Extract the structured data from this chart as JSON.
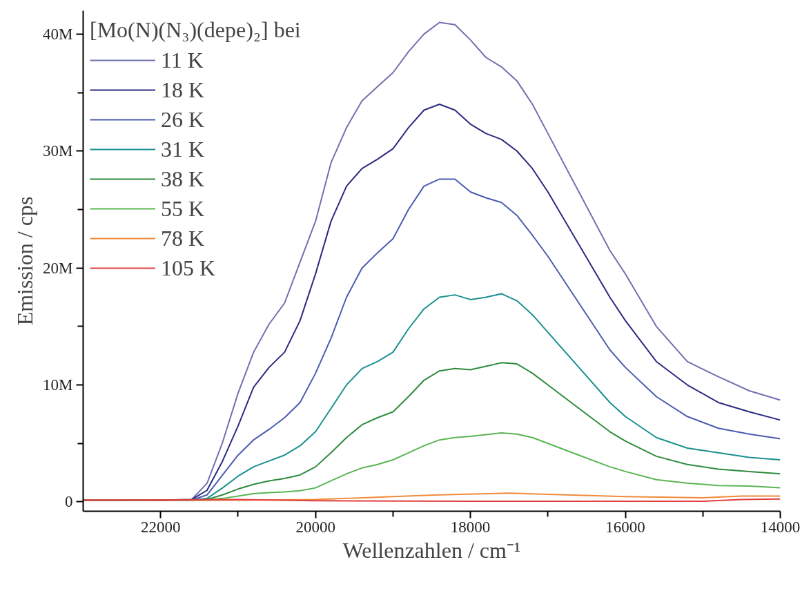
{
  "chart_data": {
    "type": "line",
    "xlabel": "Wellenzahlen / cm⁻¹",
    "ylabel": "Emission / cps",
    "legend_title": "[Mo(N)(N₃)(depe)₂] bei",
    "x": [
      23000,
      22000,
      21600,
      21400,
      21200,
      21000,
      20800,
      20600,
      20400,
      20200,
      20000,
      19800,
      19600,
      19400,
      19200,
      19000,
      18800,
      18600,
      18400,
      18200,
      18000,
      17800,
      17600,
      17400,
      17200,
      17000,
      16600,
      16200,
      16000,
      15600,
      15200,
      14800,
      14400,
      14000
    ],
    "xlim": [
      23000,
      14000
    ],
    "ylim": [
      -800000.0,
      42000000.0
    ],
    "xticks": [
      22000,
      {
        "value": 21000,
        "label": null
      },
      20000,
      {
        "value": 19000,
        "label": null
      },
      18000,
      {
        "value": 17000,
        "label": null
      },
      16000,
      {
        "value": 15000,
        "label": null
      },
      14000
    ],
    "yticks": [
      {
        "value": 0,
        "label": "0"
      },
      {
        "value": 5000000.0,
        "label": null
      },
      {
        "value": 10000000.0,
        "label": "10M"
      },
      {
        "value": 15000000.0,
        "label": null
      },
      {
        "value": 20000000.0,
        "label": "20M"
      },
      {
        "value": 25000000.0,
        "label": null
      },
      {
        "value": 30000000.0,
        "label": "30M"
      },
      {
        "value": 35000000.0,
        "label": null
      },
      {
        "value": 40000000.0,
        "label": "40M"
      }
    ],
    "grid": false,
    "legend": "top left",
    "marker": "none",
    "line_style": "solid",
    "series": [
      {
        "name": "11 K",
        "color": "#7070b0",
        "values": [
          150000.0,
          150000.0,
          200000.0,
          1600000.0,
          5100000.0,
          9300000.0,
          12800000.0,
          15200000.0,
          17000000.0,
          20500000.0,
          24000000.0,
          29000000.0,
          32000000.0,
          34300000.0,
          35500000.0,
          36700000.0,
          38500000.0,
          40000000.0,
          41000000.0,
          40800000.0,
          39500000.0,
          38000000.0,
          37200000.0,
          36000000.0,
          34000000.0,
          31500000.0,
          26500000.0,
          21500000.0,
          19500000.0,
          15000000.0,
          12000000.0,
          10700000.0,
          9500000.0,
          8700000.0
        ]
      },
      {
        "name": "18 K",
        "color": "#2a2a80",
        "values": [
          150000.0,
          150000.0,
          200000.0,
          1000000.0,
          3500000.0,
          6500000.0,
          9800000.0,
          11500000.0,
          12800000.0,
          15500000.0,
          19500000.0,
          24000000.0,
          27000000.0,
          28500000.0,
          29300000.0,
          30200000.0,
          32000000.0,
          33500000.0,
          34000000.0,
          33500000.0,
          32300000.0,
          31500000.0,
          31000000.0,
          30000000.0,
          28500000.0,
          26500000.0,
          22000000.0,
          17500000.0,
          15500000.0,
          12000000.0,
          10000000.0,
          8500000.0,
          7700000.0,
          7000000.0
        ]
      },
      {
        "name": "26 K",
        "color": "#4a5cb0",
        "values": [
          150000.0,
          150000.0,
          150000.0,
          600000.0,
          2300000.0,
          4000000.0,
          5300000.0,
          6200000.0,
          7200000.0,
          8500000.0,
          11000000.0,
          14000000.0,
          17500000.0,
          20000000.0,
          21300000.0,
          22500000.0,
          25000000.0,
          27000000.0,
          27600000.0,
          27600000.0,
          26500000.0,
          26000000.0,
          25600000.0,
          24500000.0,
          22800000.0,
          21000000.0,
          17000000.0,
          13000000.0,
          11500000.0,
          9000000.0,
          7300000.0,
          6300000.0,
          5800000.0,
          5400000.0
        ]
      },
      {
        "name": "31 K",
        "color": "#1a9090",
        "values": [
          150000.0,
          150000.0,
          150000.0,
          300000.0,
          1200000.0,
          2200000.0,
          3000000.0,
          3500000.0,
          4000000.0,
          4800000.0,
          6000000.0,
          8000000.0,
          10000000.0,
          11400000.0,
          12000000.0,
          12800000.0,
          14800000.0,
          16500000.0,
          17500000.0,
          17700000.0,
          17300000.0,
          17500000.0,
          17800000.0,
          17200000.0,
          16000000.0,
          14500000.0,
          11500000.0,
          8500000.0,
          7300000.0,
          5500000.0,
          4600000.0,
          4200000.0,
          3800000.0,
          3600000.0
        ]
      },
      {
        "name": "38 K",
        "color": "#2e8b3e",
        "values": [
          null,
          null,
          150000.0,
          200000.0,
          600000.0,
          1100000.0,
          1500000.0,
          1800000.0,
          2000000.0,
          2300000.0,
          3000000.0,
          4200000.0,
          5500000.0,
          6600000.0,
          7200000.0,
          7700000.0,
          9000000.0,
          10400000.0,
          11200000.0,
          11400000.0,
          11300000.0,
          11600000.0,
          11900000.0,
          11800000.0,
          11000000.0,
          10000000.0,
          8000000.0,
          6000000.0,
          5200000.0,
          3900000.0,
          3200000.0,
          2800000.0,
          2600000.0,
          2400000.0
        ]
      },
      {
        "name": "55 K",
        "color": "#5ab552",
        "values": [
          null,
          null,
          150000.0,
          150000.0,
          300000.0,
          500000.0,
          700000.0,
          800000.0,
          850000.0,
          950000.0,
          1200000.0,
          1800000.0,
          2400000.0,
          2900000.0,
          3200000.0,
          3600000.0,
          4200000.0,
          4800000.0,
          5300000.0,
          5500000.0,
          5600000.0,
          5750000.0,
          5900000.0,
          5800000.0,
          5500000.0,
          5000000.0,
          4000000.0,
          3000000.0,
          2600000.0,
          1900000.0,
          1600000.0,
          1400000.0,
          1350000.0,
          1200000.0
        ]
      },
      {
        "name": "78 K",
        "color": "#f08a3a",
        "x": [
          23000,
          21000,
          20000,
          19000,
          18400,
          17500,
          17000,
          16000,
          15000,
          14500,
          14000
        ],
        "values": [
          150000.0,
          150000.0,
          200000.0,
          450000.0,
          600000.0,
          750000.0,
          650000.0,
          450000.0,
          350000.0,
          500000.0,
          500000.0
        ]
      },
      {
        "name": "105 K",
        "color": "#e04040",
        "x": [
          23000,
          21000,
          20000,
          18000,
          16000,
          15000,
          14500,
          14000
        ],
        "values": [
          150000.0,
          200000.0,
          100000.0,
          50000.0,
          50000.0,
          50000.0,
          200000.0,
          250000.0
        ]
      }
    ]
  }
}
